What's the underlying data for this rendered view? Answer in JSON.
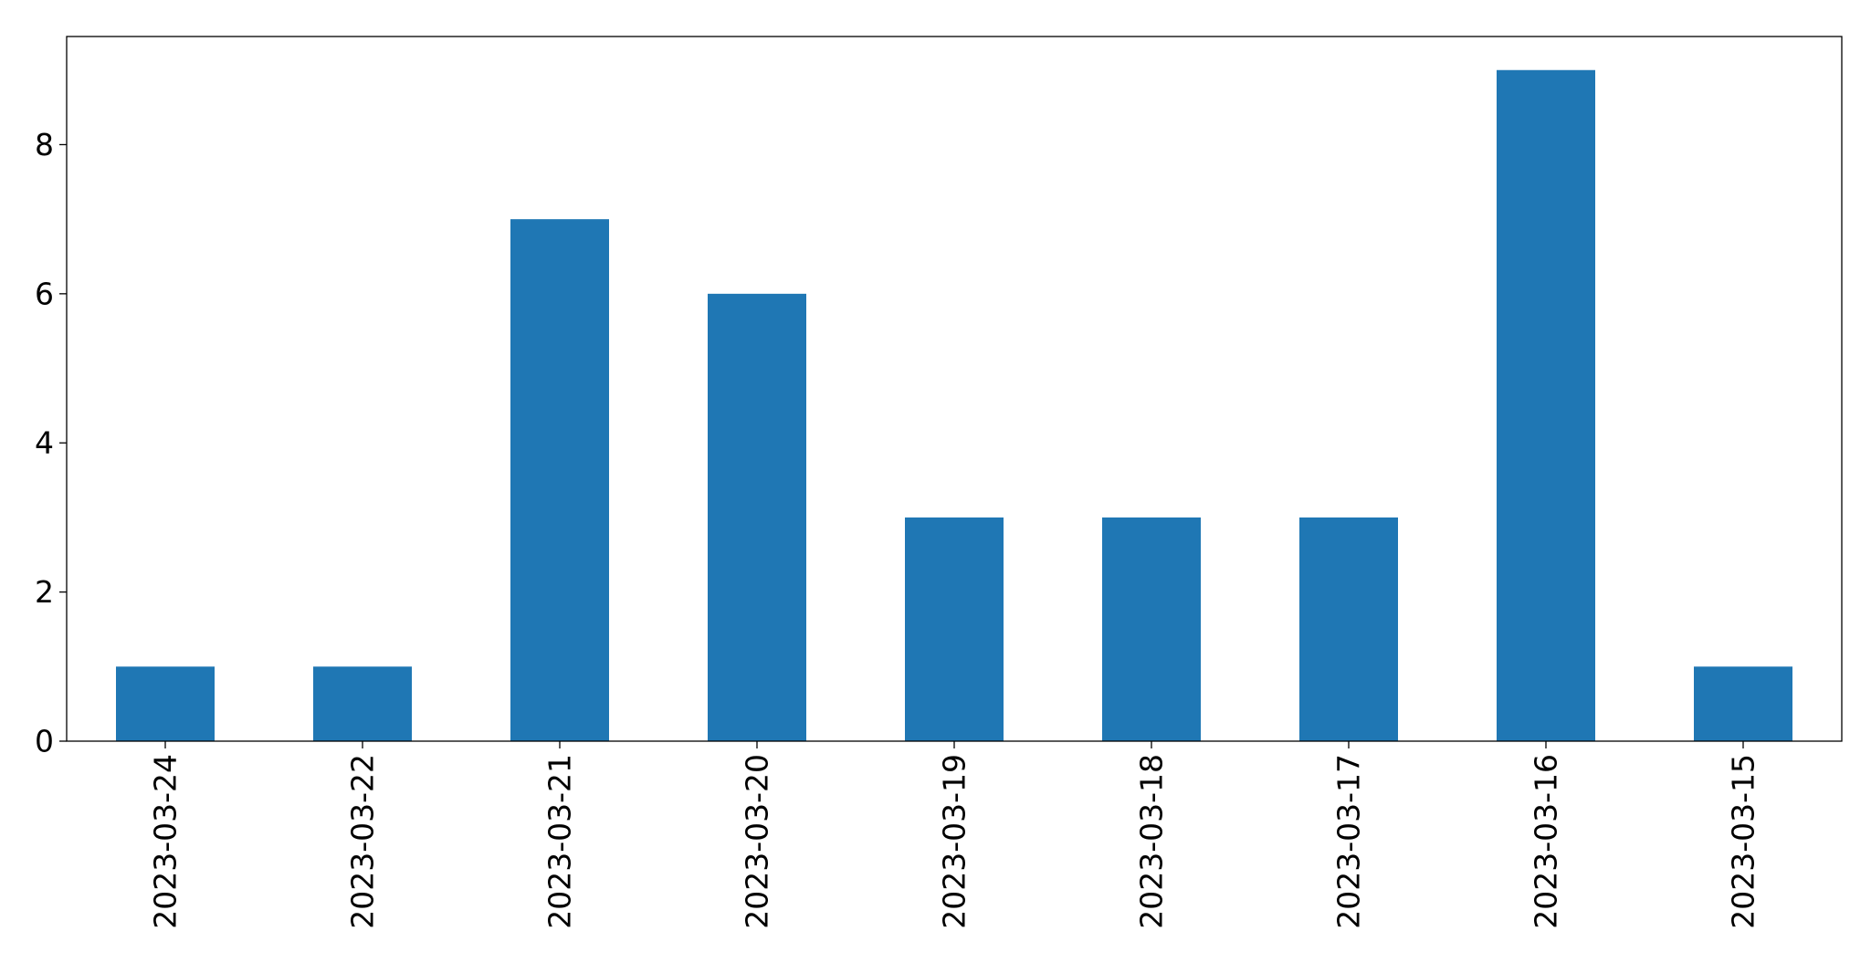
{
  "chart_data": {
    "type": "bar",
    "title": "",
    "xlabel": "",
    "ylabel": "",
    "categories": [
      "2023-03-24",
      "2023-03-22",
      "2023-03-21",
      "2023-03-20",
      "2023-03-19",
      "2023-03-18",
      "2023-03-17",
      "2023-03-16",
      "2023-03-15"
    ],
    "values": [
      1,
      1,
      7,
      6,
      3,
      3,
      3,
      9,
      1
    ],
    "ylim": [
      0,
      9.45
    ],
    "yticks": [
      0,
      2,
      4,
      6,
      8
    ],
    "bar_color": "#1f77b4",
    "grid": false,
    "legend": false
  }
}
